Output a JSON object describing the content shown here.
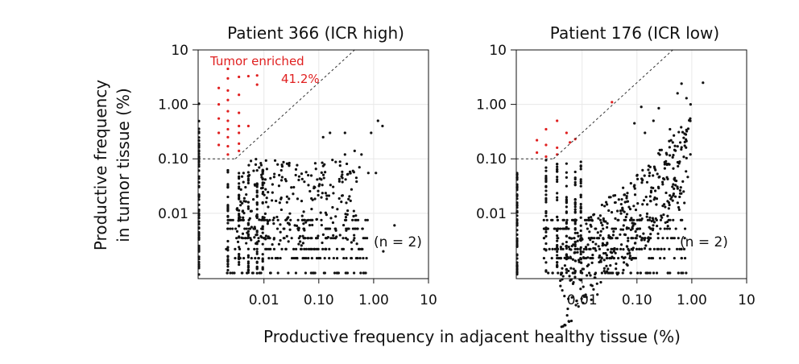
{
  "figure": {
    "ylabel_line1": "Productive frequency",
    "ylabel_line2": "in tumor tissue (%)",
    "xlabel": "Productive frequency in adjacent healthy tissue (%)"
  },
  "chart_data": [
    {
      "type": "scatter",
      "title": "Patient 366 (ICR high)",
      "scale": "log10",
      "xlim_log10": [
        -3.2,
        1.0
      ],
      "ylim_log10": [
        -3.2,
        1.0
      ],
      "x_ticks": [
        0.01,
        0.1,
        1.0,
        10
      ],
      "x_tick_labels": [
        "0.01",
        "0.10",
        "1.00",
        "10"
      ],
      "y_ticks": [
        10,
        1.0,
        0.1,
        0.01
      ],
      "y_tick_labels": [
        "10",
        "1.00",
        "0.10",
        "0.01"
      ],
      "enrichment_threshold_percent": 0.1,
      "annotation": "Tumor enriched",
      "annotation_value": "41.2%",
      "n_label": "(n = 2)",
      "colors": {
        "enriched": "#e02020",
        "other": "#111111"
      },
      "tumor_enriched_points": [
        [
          0.0015,
          2.0
        ],
        [
          0.0015,
          1.0
        ],
        [
          0.0015,
          0.55
        ],
        [
          0.0015,
          0.3
        ],
        [
          0.0015,
          0.18
        ],
        [
          0.0022,
          4.5
        ],
        [
          0.0022,
          3.0
        ],
        [
          0.0022,
          1.8
        ],
        [
          0.0022,
          1.2
        ],
        [
          0.0022,
          0.75
        ],
        [
          0.0022,
          0.5
        ],
        [
          0.0022,
          0.35
        ],
        [
          0.0022,
          0.25
        ],
        [
          0.0022,
          0.17
        ],
        [
          0.0022,
          0.12
        ],
        [
          0.0035,
          3.2
        ],
        [
          0.0035,
          1.5
        ],
        [
          0.0035,
          0.7
        ],
        [
          0.0035,
          0.4
        ],
        [
          0.0035,
          0.3
        ],
        [
          0.0035,
          0.19
        ],
        [
          0.0035,
          0.14
        ],
        [
          0.0052,
          3.3
        ],
        [
          0.0052,
          0.4
        ],
        [
          0.0075,
          3.4
        ],
        [
          0.0075,
          2.3
        ]
      ],
      "other_points_highlight": [
        [
          0.3,
          0.12
        ],
        [
          0.42,
          0.06
        ],
        [
          0.55,
          0.07
        ],
        [
          1.2,
          0.5
        ],
        [
          1.45,
          0.4
        ],
        [
          1.1,
          0.055
        ],
        [
          0.8,
          0.055
        ],
        [
          2.4,
          0.006
        ],
        [
          1.5,
          0.002
        ],
        [
          0.16,
          0.3
        ],
        [
          0.12,
          0.25
        ],
        [
          0.3,
          0.3
        ],
        [
          0.45,
          0.14
        ],
        [
          0.6,
          0.12
        ],
        [
          0.9,
          0.3
        ]
      ]
    },
    {
      "type": "scatter",
      "title": "Patient 176 (ICR low)",
      "scale": "log10",
      "xlim_log10": [
        -3.2,
        1.0
      ],
      "ylim_log10": [
        -3.2,
        1.0
      ],
      "x_ticks": [
        0.01,
        0.1,
        1.0,
        10
      ],
      "x_tick_labels": [
        "0.01",
        "0.10",
        "1.00",
        "10"
      ],
      "y_ticks": [
        10,
        1.0,
        0.1,
        0.01
      ],
      "y_tick_labels": [
        "10",
        "1.00",
        "0.10",
        "0.01"
      ],
      "enrichment_threshold_percent": 0.1,
      "n_label": "(n = 2)",
      "colors": {
        "enriched": "#e02020",
        "other": "#111111"
      },
      "tumor_enriched_points": [
        [
          0.0015,
          0.22
        ],
        [
          0.0015,
          0.13
        ],
        [
          0.0022,
          0.35
        ],
        [
          0.0022,
          0.18
        ],
        [
          0.0022,
          0.11
        ],
        [
          0.0035,
          0.5
        ],
        [
          0.0035,
          0.16
        ],
        [
          0.0052,
          0.3
        ],
        [
          0.006,
          0.2
        ],
        [
          0.0035,
          0.12
        ],
        [
          0.035,
          1.1
        ],
        [
          0.0075,
          0.23
        ]
      ],
      "other_points_highlight": [
        [
          0.65,
          2.4
        ],
        [
          0.8,
          1.3
        ],
        [
          1.6,
          2.5
        ],
        [
          0.95,
          1.0
        ],
        [
          0.55,
          1.6
        ],
        [
          0.14,
          0.3
        ],
        [
          0.25,
          0.85
        ],
        [
          0.4,
          0.35
        ],
        [
          0.35,
          0.12
        ],
        [
          0.45,
          0.2
        ],
        [
          0.6,
          0.02
        ],
        [
          0.5,
          0.04
        ],
        [
          0.2,
          0.5
        ],
        [
          0.09,
          0.45
        ],
        [
          0.12,
          0.9
        ]
      ]
    }
  ]
}
